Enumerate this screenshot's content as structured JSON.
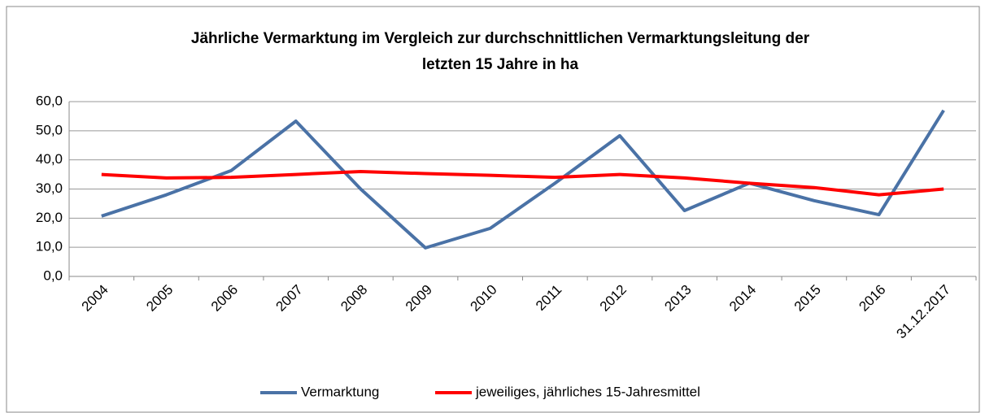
{
  "chart_data": {
    "type": "line",
    "title": [
      "Jährliche Vermarktung im Vergleich zur durchschnittlichen Vermarktungsleitung der",
      "letzten 15 Jahre in ha"
    ],
    "categories": [
      "2004",
      "2005",
      "2006",
      "2007",
      "2008",
      "2009",
      "2010",
      "2011",
      "2012",
      "2013",
      "2014",
      "2015",
      "2016",
      "31.12.2017"
    ],
    "series": [
      {
        "name": "Vermarktung",
        "color": "#4a72a6",
        "values": [
          20.7,
          28,
          36.3,
          53.3,
          30,
          9.8,
          16.5,
          32,
          48.3,
          22.6,
          32,
          26,
          21.2,
          57
        ]
      },
      {
        "name": "jeweiliges, jährliches 15-Jahresmittel",
        "color": "#ff0000",
        "values": [
          35,
          33.8,
          34,
          35,
          36,
          35.3,
          34.7,
          34,
          35,
          33.8,
          32,
          30.5,
          28,
          30
        ]
      }
    ],
    "ylim": [
      0,
      60
    ],
    "yticks": [
      {
        "value": 0,
        "label": "0,0"
      },
      {
        "value": 10,
        "label": "10,0"
      },
      {
        "value": 20,
        "label": "20,0"
      },
      {
        "value": 30,
        "label": "30,0"
      },
      {
        "value": 40,
        "label": "40,0"
      },
      {
        "value": 50,
        "label": "50,0"
      },
      {
        "value": 60,
        "label": "60,0"
      }
    ],
    "grid": true,
    "legend": "bottom"
  }
}
